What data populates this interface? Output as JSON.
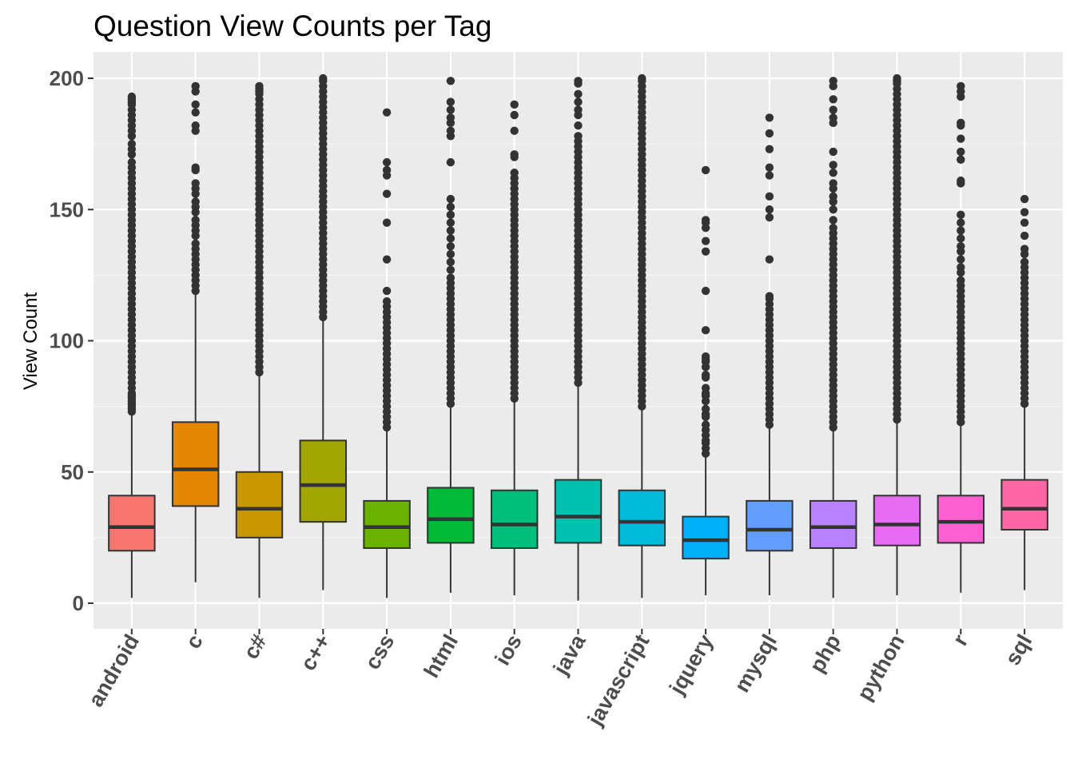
{
  "chart_data": {
    "type": "box",
    "title": "Question View Counts per Tag",
    "xlabel": "",
    "ylabel": "View Count",
    "ylim": [
      -10,
      210
    ],
    "y_ticks": [
      0,
      50,
      100,
      150,
      200
    ],
    "grid": true,
    "legend": "none",
    "categories": [
      "android",
      "c",
      "c#",
      "c++",
      "css",
      "html",
      "ios",
      "java",
      "javascript",
      "jquery",
      "mysql",
      "php",
      "python",
      "r",
      "sql"
    ],
    "colors": [
      "#F8766D",
      "#E58700",
      "#C99800",
      "#A3A500",
      "#6BB100",
      "#00BA38",
      "#00BF7D",
      "#00C0AF",
      "#00BCD8",
      "#00B0F6",
      "#619CFF",
      "#B983FF",
      "#E76BF3",
      "#FD61D1",
      "#FF67A4"
    ],
    "boxes": [
      {
        "q1": 20,
        "median": 29,
        "q3": 41,
        "whisker_low": 2,
        "whisker_high": 72,
        "outliers": [
          73,
          74,
          75,
          76,
          77,
          78,
          79,
          80,
          82,
          84,
          86,
          88,
          90,
          92,
          94,
          96,
          98,
          100,
          102,
          104,
          106,
          108,
          110,
          112,
          114,
          116,
          118,
          120,
          122,
          124,
          126,
          128,
          130,
          132,
          134,
          136,
          138,
          140,
          142,
          144,
          146,
          148,
          150,
          152,
          154,
          156,
          158,
          160,
          162,
          164,
          166,
          168,
          171,
          173,
          175,
          178,
          180,
          182,
          184,
          186,
          188,
          190,
          191,
          192,
          193
        ]
      },
      {
        "q1": 37,
        "median": 51,
        "q3": 69,
        "whisker_low": 8,
        "whisker_high": 118,
        "outliers": [
          119,
          121,
          123,
          125,
          127,
          129,
          131,
          133,
          135,
          137,
          140,
          142,
          144,
          146,
          149,
          151,
          153,
          156,
          158,
          160,
          165,
          166,
          180,
          182,
          187,
          190,
          195,
          197
        ]
      },
      {
        "q1": 25,
        "median": 36,
        "q3": 50,
        "whisker_low": 2,
        "whisker_high": 87,
        "outliers": [
          88,
          90,
          92,
          94,
          96,
          98,
          100,
          102,
          104,
          106,
          108,
          110,
          112,
          114,
          116,
          118,
          120,
          122,
          124,
          126,
          128,
          130,
          132,
          134,
          136,
          138,
          140,
          142,
          144,
          146,
          148,
          150,
          152,
          154,
          156,
          158,
          160,
          162,
          164,
          166,
          168,
          170,
          172,
          174,
          176,
          178,
          180,
          182,
          184,
          186,
          188,
          190,
          192,
          194,
          195,
          196,
          197
        ]
      },
      {
        "q1": 31,
        "median": 45,
        "q3": 62,
        "whisker_low": 5,
        "whisker_high": 108,
        "outliers": [
          109,
          111,
          113,
          115,
          117,
          119,
          121,
          123,
          125,
          127,
          129,
          131,
          133,
          135,
          137,
          139,
          141,
          143,
          145,
          147,
          149,
          151,
          153,
          155,
          157,
          159,
          161,
          163,
          165,
          167,
          169,
          171,
          173,
          175,
          177,
          179,
          181,
          183,
          185,
          187,
          189,
          191,
          193,
          195,
          197,
          199,
          200
        ]
      },
      {
        "q1": 21,
        "median": 29,
        "q3": 39,
        "whisker_low": 2,
        "whisker_high": 66,
        "outliers": [
          67,
          69,
          71,
          73,
          75,
          77,
          79,
          81,
          83,
          85,
          87,
          89,
          91,
          93,
          95,
          97,
          99,
          101,
          103,
          105,
          107,
          109,
          111,
          113,
          115,
          119,
          131,
          145,
          156,
          163,
          165,
          168,
          187
        ]
      },
      {
        "q1": 23,
        "median": 32,
        "q3": 44,
        "whisker_low": 4,
        "whisker_high": 75,
        "outliers": [
          76,
          78,
          80,
          82,
          84,
          86,
          88,
          90,
          92,
          94,
          96,
          98,
          100,
          102,
          104,
          106,
          108,
          110,
          112,
          114,
          116,
          118,
          120,
          122,
          124,
          127,
          130,
          133,
          136,
          139,
          142,
          145,
          148,
          151,
          154,
          168,
          178,
          180,
          183,
          185,
          188,
          191,
          199
        ]
      },
      {
        "q1": 21,
        "median": 30,
        "q3": 43,
        "whisker_low": 3,
        "whisker_high": 77,
        "outliers": [
          78,
          80,
          82,
          84,
          86,
          88,
          90,
          92,
          94,
          96,
          98,
          100,
          102,
          104,
          106,
          108,
          110,
          112,
          114,
          116,
          118,
          120,
          122,
          124,
          126,
          128,
          130,
          132,
          134,
          136,
          138,
          140,
          142,
          144,
          146,
          148,
          150,
          152,
          154,
          156,
          158,
          160,
          162,
          164,
          170,
          171,
          180,
          186,
          190
        ]
      },
      {
        "q1": 23,
        "median": 33,
        "q3": 47,
        "whisker_low": 1,
        "whisker_high": 83,
        "outliers": [
          84,
          86,
          88,
          90,
          92,
          94,
          96,
          98,
          100,
          102,
          104,
          106,
          108,
          110,
          112,
          114,
          116,
          118,
          120,
          122,
          124,
          126,
          128,
          130,
          132,
          134,
          136,
          138,
          140,
          142,
          144,
          146,
          148,
          150,
          152,
          154,
          156,
          158,
          160,
          162,
          164,
          166,
          168,
          170,
          172,
          174,
          176,
          178,
          182,
          186,
          188,
          191,
          194,
          198,
          199
        ]
      },
      {
        "q1": 22,
        "median": 31,
        "q3": 43,
        "whisker_low": 2,
        "whisker_high": 74,
        "outliers": [
          75,
          77,
          79,
          81,
          83,
          85,
          87,
          89,
          91,
          93,
          95,
          97,
          99,
          101,
          103,
          105,
          107,
          109,
          111,
          113,
          115,
          117,
          119,
          121,
          123,
          125,
          127,
          129,
          131,
          133,
          135,
          137,
          139,
          141,
          143,
          145,
          147,
          149,
          151,
          153,
          155,
          157,
          159,
          161,
          163,
          165,
          167,
          169,
          171,
          173,
          175,
          177,
          179,
          181,
          183,
          185,
          187,
          189,
          191,
          193,
          195,
          197,
          199,
          200
        ]
      },
      {
        "q1": 17,
        "median": 24,
        "q3": 33,
        "whisker_low": 3,
        "whisker_high": 56,
        "outliers": [
          57,
          59,
          61,
          62,
          64,
          66,
          68,
          71,
          72,
          74,
          77,
          79,
          80,
          82,
          86,
          87,
          90,
          92,
          93,
          94,
          104,
          119,
          134,
          138,
          143,
          145,
          146,
          165
        ]
      },
      {
        "q1": 20,
        "median": 28,
        "q3": 39,
        "whisker_low": 3,
        "whisker_high": 67,
        "outliers": [
          68,
          70,
          72,
          74,
          76,
          78,
          80,
          82,
          84,
          86,
          88,
          90,
          92,
          94,
          96,
          98,
          100,
          102,
          104,
          106,
          108,
          110,
          112,
          114,
          116,
          117,
          131,
          147,
          150,
          155,
          163,
          166,
          173,
          179,
          185
        ]
      },
      {
        "q1": 21,
        "median": 29,
        "q3": 39,
        "whisker_low": 2,
        "whisker_high": 66,
        "outliers": [
          67,
          69,
          71,
          73,
          75,
          77,
          79,
          81,
          83,
          85,
          87,
          89,
          91,
          93,
          95,
          97,
          99,
          101,
          103,
          105,
          107,
          109,
          111,
          113,
          115,
          117,
          119,
          121,
          123,
          125,
          127,
          129,
          131,
          133,
          135,
          137,
          139,
          141,
          143,
          146,
          150,
          153,
          155,
          158,
          160,
          164,
          167,
          172,
          183,
          185,
          188,
          192,
          197,
          199
        ]
      },
      {
        "q1": 22,
        "median": 30,
        "q3": 41,
        "whisker_low": 3,
        "whisker_high": 69,
        "outliers": [
          70,
          72,
          74,
          76,
          78,
          80,
          82,
          84,
          86,
          88,
          90,
          92,
          94,
          96,
          98,
          100,
          102,
          104,
          106,
          108,
          110,
          112,
          114,
          116,
          118,
          120,
          122,
          124,
          126,
          128,
          130,
          132,
          134,
          136,
          138,
          140,
          142,
          144,
          146,
          148,
          150,
          152,
          154,
          156,
          158,
          160,
          162,
          164,
          166,
          168,
          170,
          172,
          174,
          176,
          178,
          180,
          182,
          184,
          186,
          188,
          190,
          192,
          194,
          196,
          198,
          199,
          200
        ]
      },
      {
        "q1": 23,
        "median": 31,
        "q3": 41,
        "whisker_low": 4,
        "whisker_high": 68,
        "outliers": [
          69,
          71,
          73,
          75,
          77,
          79,
          81,
          83,
          85,
          87,
          89,
          91,
          93,
          95,
          97,
          99,
          101,
          103,
          105,
          107,
          109,
          111,
          113,
          115,
          117,
          119,
          121,
          123,
          126,
          128,
          131,
          134,
          136,
          139,
          142,
          145,
          148,
          160,
          161,
          169,
          172,
          177,
          182,
          183,
          193,
          195,
          197
        ]
      },
      {
        "q1": 28,
        "median": 36,
        "q3": 47,
        "whisker_low": 5,
        "whisker_high": 75,
        "outliers": [
          76,
          78,
          80,
          82,
          84,
          86,
          88,
          90,
          92,
          94,
          96,
          98,
          100,
          102,
          104,
          106,
          108,
          110,
          112,
          114,
          116,
          118,
          120,
          122,
          124,
          126,
          128,
          130,
          133,
          135,
          140,
          145,
          149,
          154
        ]
      }
    ]
  }
}
